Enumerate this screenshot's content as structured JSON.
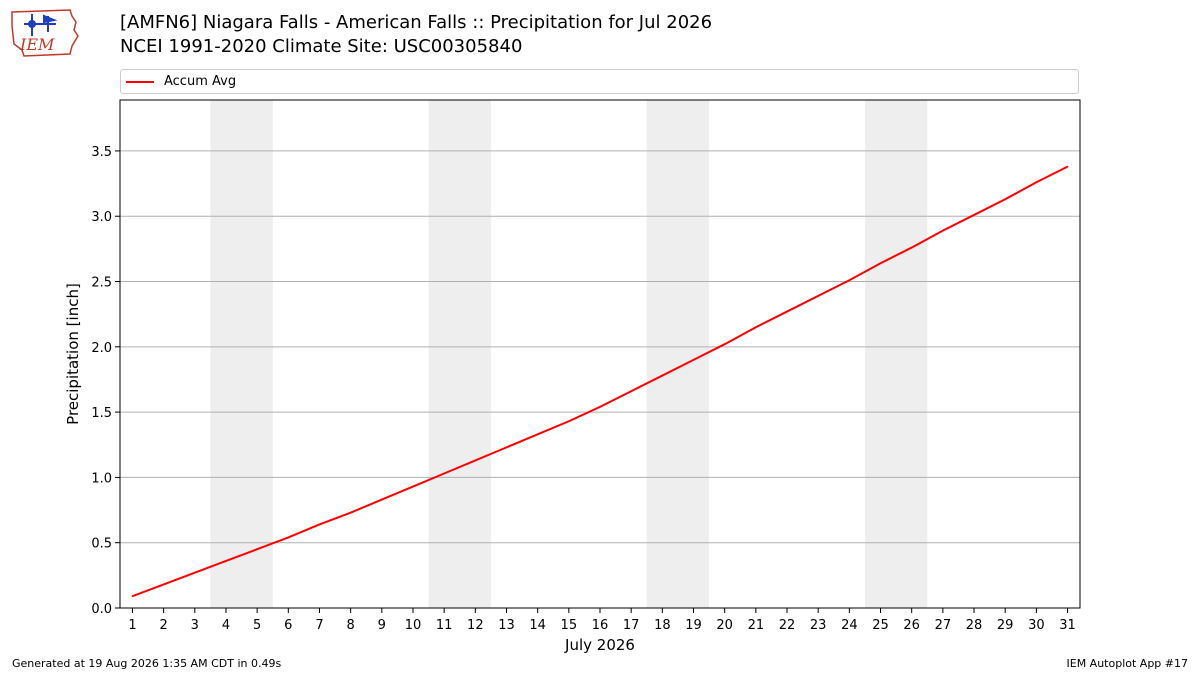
{
  "header": {
    "title": "[AMFN6] Niagara Falls - American Falls :: Precipitation for Jul 2026",
    "subtitle": "NCEI 1991-2020 Climate Site: USC00305840"
  },
  "logo": {
    "text": "IEM",
    "icon": "iem-iowa-state-logo"
  },
  "footer": {
    "generated": "Generated at 19 Aug 2026 1:35 AM CDT in 0.49s",
    "app": "IEM Autoplot App #17"
  },
  "legend": {
    "items": [
      {
        "label": "Accum Avg",
        "color": "#ff0000"
      }
    ]
  },
  "chart_data": {
    "type": "line",
    "xlabel": "July 2026",
    "ylabel": "Precipitation [inch]",
    "x": [
      1,
      2,
      3,
      4,
      5,
      6,
      7,
      8,
      9,
      10,
      11,
      12,
      13,
      14,
      15,
      16,
      17,
      18,
      19,
      20,
      21,
      22,
      23,
      24,
      25,
      26,
      27,
      28,
      29,
      30,
      31
    ],
    "xlim": [
      0.6,
      31.4
    ],
    "ylim": [
      0.0,
      3.89
    ],
    "yticks": [
      0.0,
      0.5,
      1.0,
      1.5,
      2.0,
      2.5,
      3.0,
      3.5
    ],
    "ytick_labels": [
      "0.0",
      "0.5",
      "1.0",
      "1.5",
      "2.0",
      "2.5",
      "3.0",
      "3.5"
    ],
    "grid": "horizontal",
    "legend_position": "top",
    "weekend_shading": [
      [
        3.5,
        5.5
      ],
      [
        10.5,
        12.5
      ],
      [
        17.5,
        19.5
      ],
      [
        24.5,
        26.5
      ]
    ],
    "shade_color": "#eeeeee",
    "series": [
      {
        "name": "Accum Avg",
        "color": "#ff0000",
        "values": [
          0.09,
          0.18,
          0.27,
          0.36,
          0.45,
          0.54,
          0.64,
          0.73,
          0.83,
          0.93,
          1.03,
          1.13,
          1.23,
          1.33,
          1.43,
          1.54,
          1.66,
          1.78,
          1.9,
          2.02,
          2.15,
          2.27,
          2.39,
          2.51,
          2.64,
          2.76,
          2.89,
          3.01,
          3.13,
          3.26,
          3.38
        ]
      }
    ]
  }
}
